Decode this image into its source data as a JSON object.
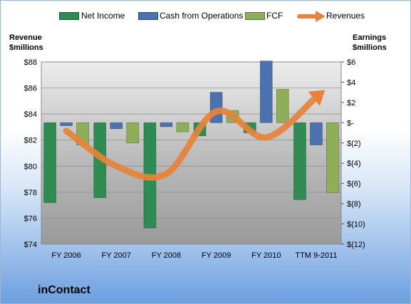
{
  "company": "inContact",
  "colors": {
    "net_income": "#2e8b52",
    "cash_ops": "#4a72b0",
    "fcf": "#8fae5a",
    "revenues": "#e8823a"
  },
  "chart_data": {
    "type": "bar",
    "left_axis_title": [
      "Revenue",
      "$millions"
    ],
    "right_axis_title": [
      "Earnings",
      "$millions"
    ],
    "categories": [
      "FY 2006",
      "FY 2007",
      "FY 2008",
      "FY 2009",
      "FY 2010",
      "TTM 9-2011"
    ],
    "left_ticks": [
      "$88",
      "$86",
      "$84",
      "$82",
      "$80",
      "$78",
      "$76",
      "$74"
    ],
    "right_ticks": [
      "$6",
      "$4",
      "$2",
      "$-",
      "$(2)",
      "$(4)",
      "$(6)",
      "$(8)",
      "$(10)",
      "$(12)"
    ],
    "left_range": [
      74,
      88
    ],
    "right_range": [
      -12,
      6
    ],
    "series": [
      {
        "name": "Net Income",
        "axis": "right",
        "kind": "bar",
        "values": [
          -7.9,
          -7.4,
          -10.4,
          -1.3,
          -1.0,
          -7.6
        ]
      },
      {
        "name": "Cash from Operations",
        "axis": "right",
        "kind": "bar",
        "values": [
          -0.3,
          -0.6,
          -0.4,
          3.0,
          6.1,
          -2.2
        ]
      },
      {
        "name": "FCF",
        "axis": "right",
        "kind": "bar",
        "values": [
          -2.2,
          -2.0,
          -0.9,
          1.2,
          3.3,
          -6.9
        ]
      },
      {
        "name": "Revenues",
        "axis": "left",
        "kind": "line",
        "values": [
          82.7,
          80.0,
          79.4,
          84.2,
          82.2,
          85.3
        ]
      }
    ],
    "legend": [
      "Net Income",
      "Cash from Operations",
      "FCF",
      "Revenues"
    ],
    "legend_position": "top",
    "grid": true
  }
}
